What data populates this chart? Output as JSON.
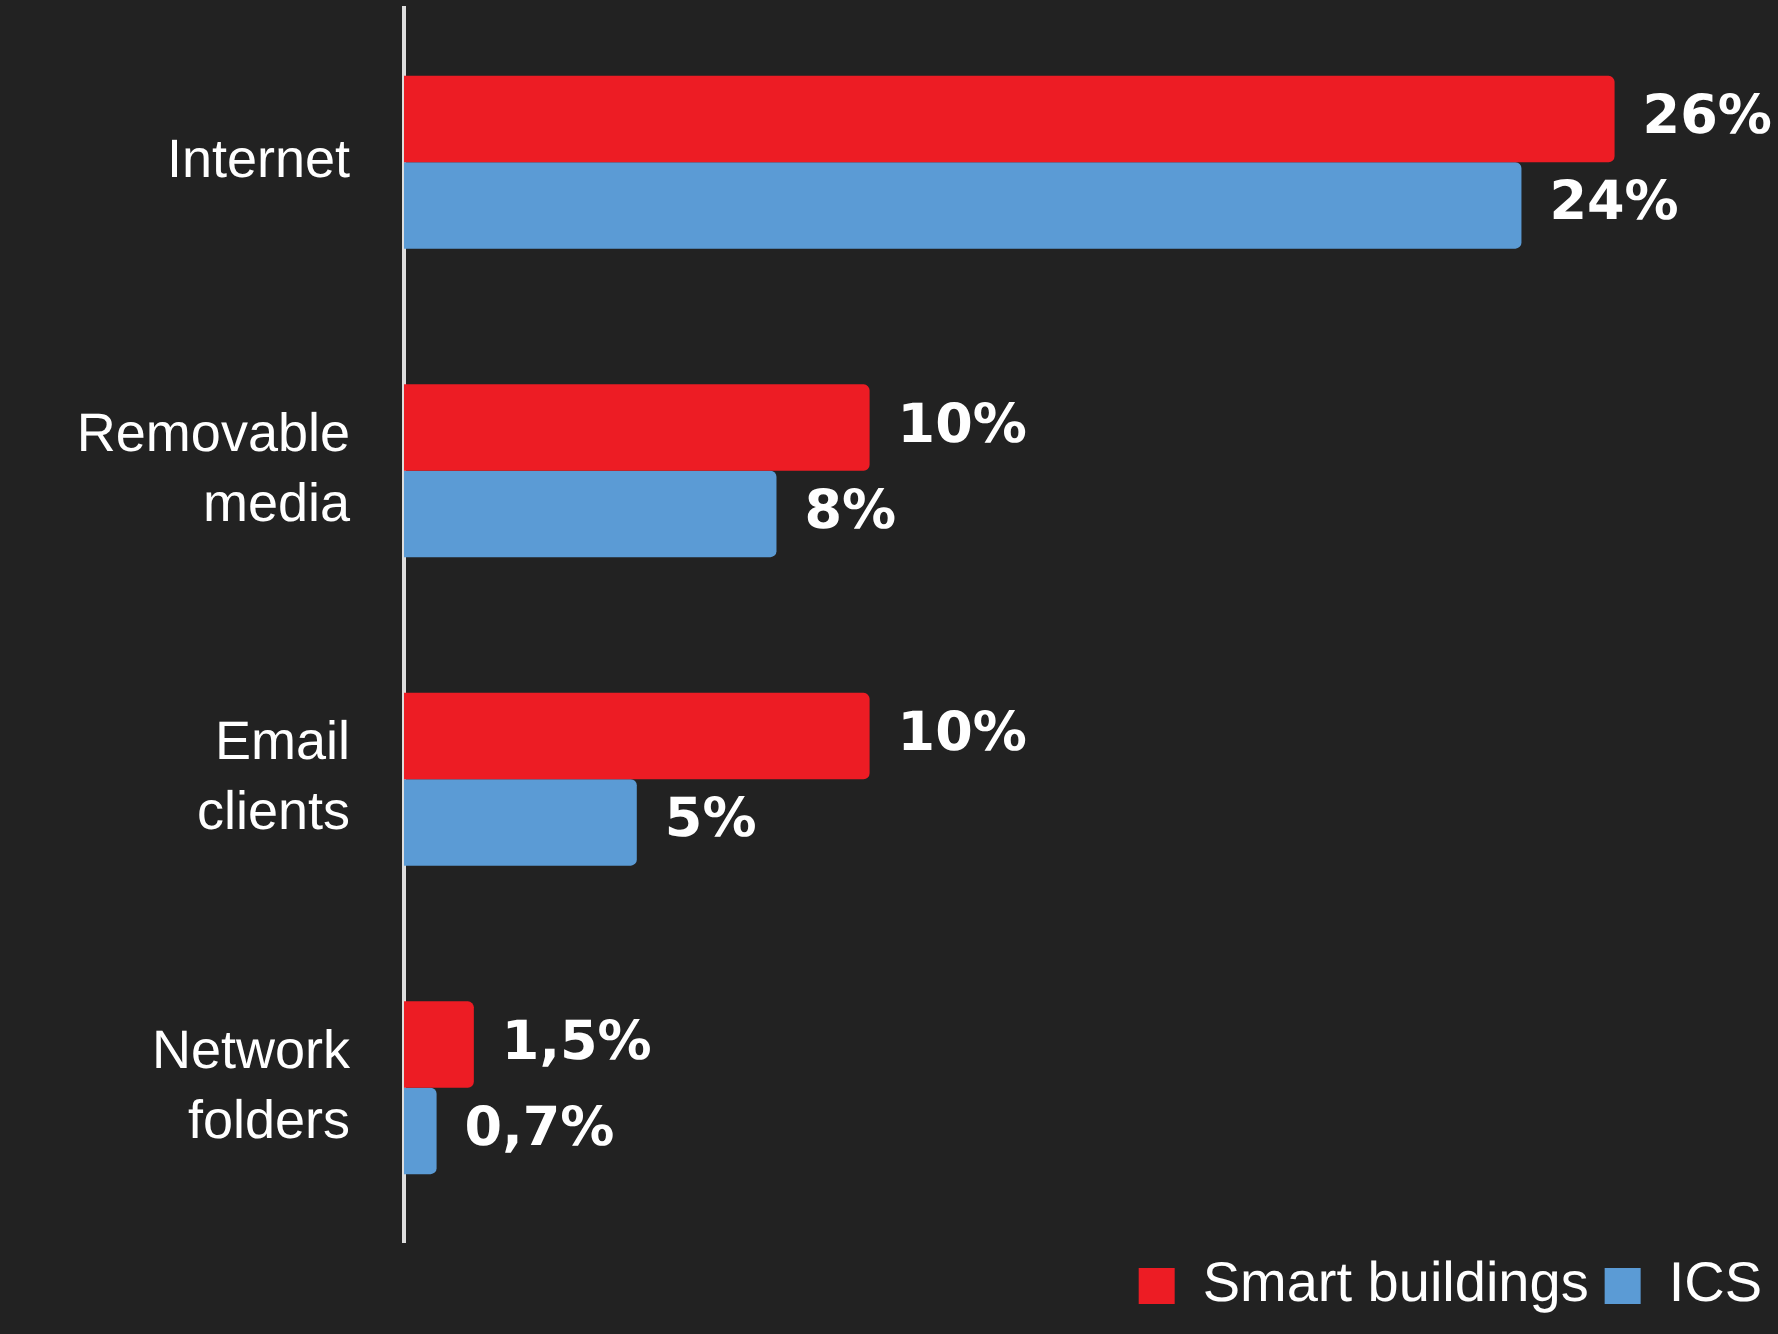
{
  "chart_data": {
    "type": "bar",
    "orientation": "horizontal",
    "categories": [
      "Internet",
      "Removable media",
      "Email clients",
      "Network folders"
    ],
    "series": [
      {
        "name": "Smart buildings",
        "color": "#ed1c24",
        "values": [
          26,
          10,
          10,
          1.5
        ],
        "value_labels": [
          "26%",
          "10%",
          "10%",
          "1,5%"
        ]
      },
      {
        "name": "ICS",
        "color": "#5b9bd5",
        "values": [
          24,
          8,
          5,
          0.7
        ],
        "value_labels": [
          "24%",
          "8%",
          "5%",
          "0,7%"
        ]
      }
    ],
    "legend": "bottom right"
  }
}
